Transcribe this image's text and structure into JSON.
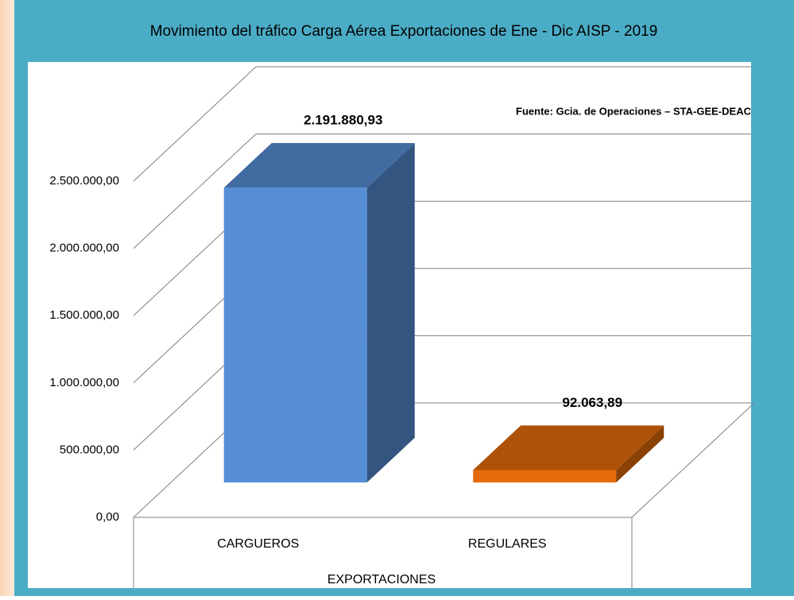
{
  "chart_data": {
    "type": "bar3d",
    "title": "Movimiento del tráfico Carga Aérea Exportaciones  de  Ene - Dic AISP - 2019",
    "annotation": "Fuente: Gcia. de Operaciones – STA-GEE-DEAC",
    "x_label": "EXPORTACIONES",
    "categories": [
      "CARGUEROS",
      "REGULARES"
    ],
    "values": [
      2191880.93,
      92063.89
    ],
    "value_labels": [
      "2.191.880,93",
      "92.063,89"
    ],
    "colors": [
      "#558ED5",
      "#E46C0A"
    ],
    "ylim": [
      0,
      2500000
    ],
    "yticks": [
      {
        "value": 0,
        "label": "0,00"
      },
      {
        "value": 500000,
        "label": "500.000,00"
      },
      {
        "value": 1000000,
        "label": "1.000.000,00"
      },
      {
        "value": 1500000,
        "label": "1.500.000,00"
      },
      {
        "value": 2000000,
        "label": "2.000.000,00"
      },
      {
        "value": 2500000,
        "label": "2.500.000,00"
      }
    ],
    "grid": true
  }
}
